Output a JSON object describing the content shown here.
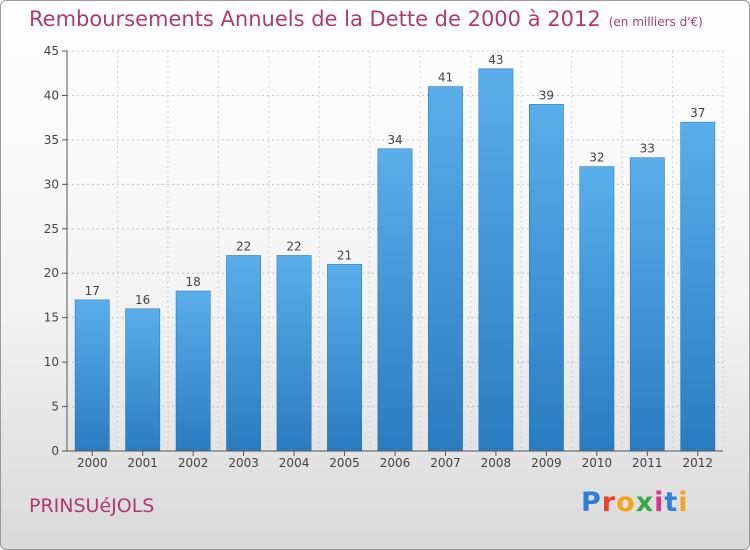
{
  "header": {
    "title": "Remboursements Annuels de la Dette de 2000 à 2012",
    "unit": "(en milliers d'€)"
  },
  "footer": {
    "commune": "PRINSUéJOLS",
    "logo_text": "Proxiti"
  },
  "colors": {
    "title": "#b03a6a",
    "bar_top": "#5aaeea",
    "bar_bottom": "#2a7cc0"
  },
  "chart_data": {
    "type": "bar",
    "categories": [
      "2000",
      "2001",
      "2002",
      "2003",
      "2004",
      "2005",
      "2006",
      "2007",
      "2008",
      "2009",
      "2010",
      "2011",
      "2012"
    ],
    "values": [
      17,
      16,
      18,
      22,
      22,
      21,
      34,
      41,
      43,
      39,
      32,
      33,
      37
    ],
    "title": "Remboursements Annuels de la Dette de 2000 à 2012",
    "xlabel": "",
    "ylabel": "",
    "ylim": [
      0,
      45
    ],
    "yticks": [
      0,
      5,
      10,
      15,
      20,
      25,
      30,
      35,
      40,
      45
    ],
    "grid": true,
    "data_labels": true
  }
}
